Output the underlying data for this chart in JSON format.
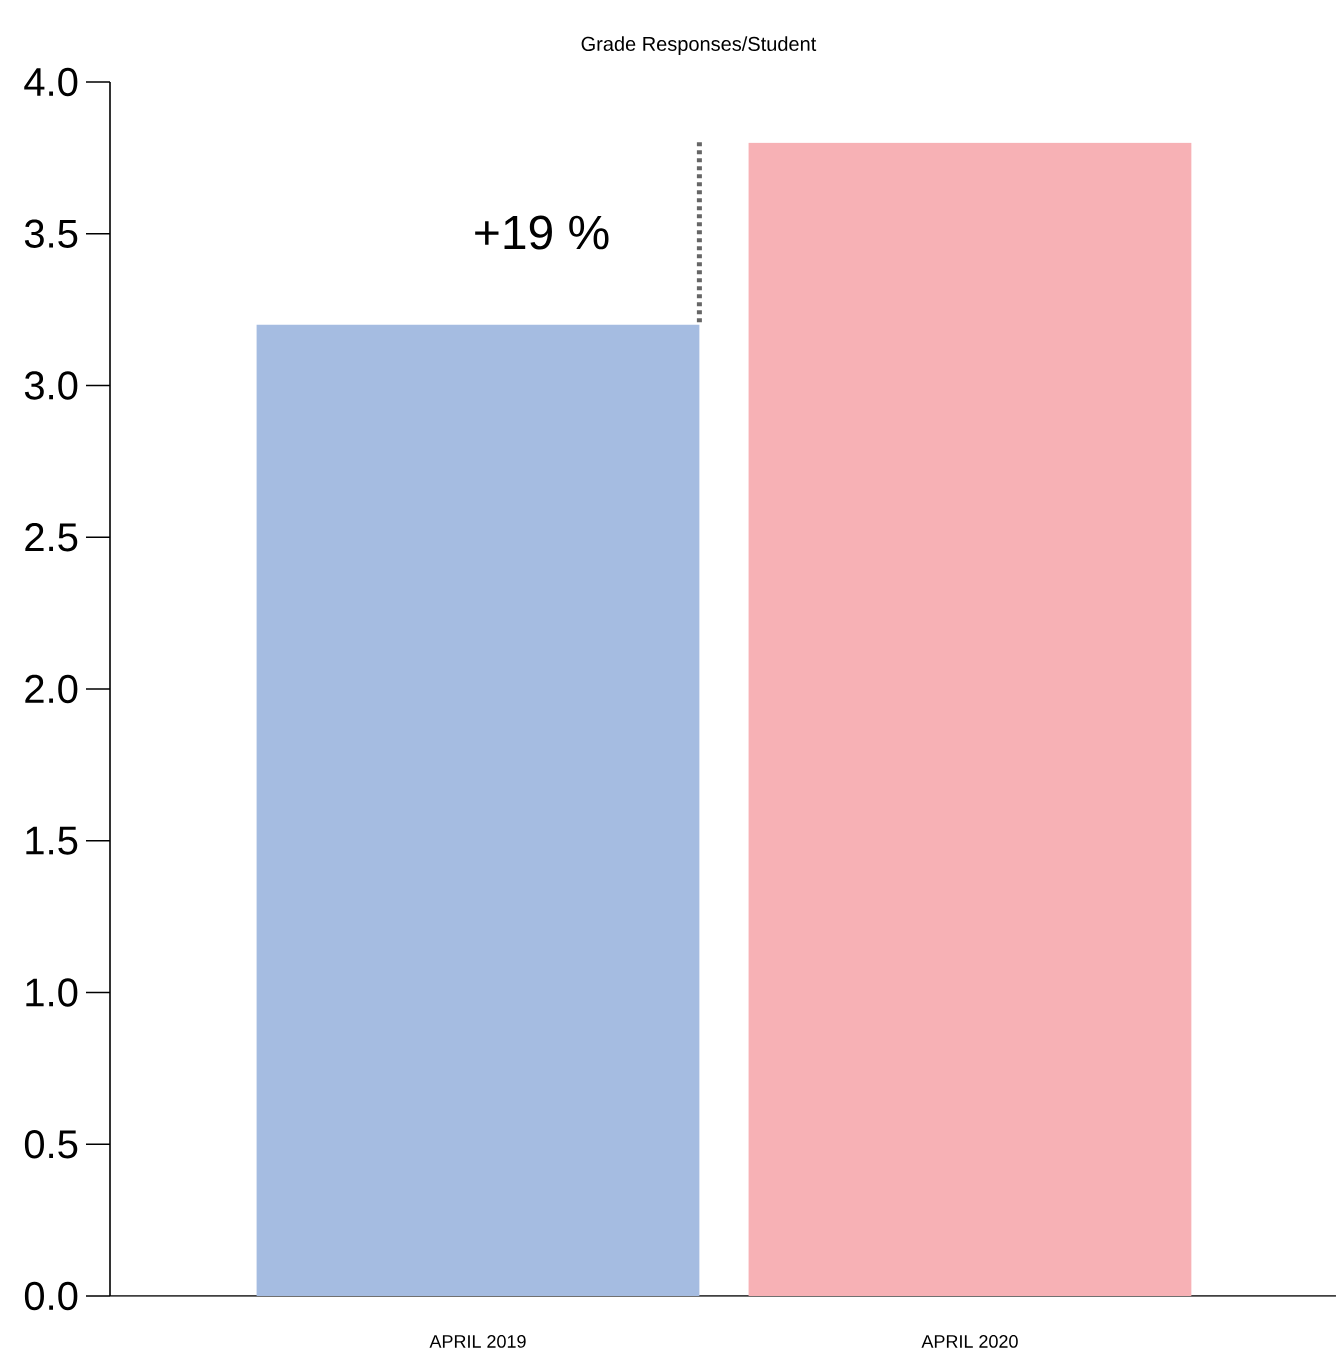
{
  "chart_data": {
    "type": "bar",
    "title": "Grade Responses/Student",
    "categories": [
      "APRIL 2019",
      "APRIL 2020"
    ],
    "values": [
      3.2,
      3.8
    ],
    "colors": [
      "#a5bce1",
      "#f7b1b5"
    ],
    "ylim": [
      0,
      4
    ],
    "yticks": [
      {
        "value": 0,
        "label": "0.0"
      },
      {
        "value": 0.5,
        "label": "0.5"
      },
      {
        "value": 1,
        "label": "1.0"
      },
      {
        "value": 1.5,
        "label": "1.5"
      },
      {
        "value": 2,
        "label": "2.0"
      },
      {
        "value": 2.5,
        "label": "2.5"
      },
      {
        "value": 3,
        "label": "3.0"
      },
      {
        "value": 3.5,
        "label": "3.5"
      },
      {
        "value": 4,
        "label": "4.0"
      }
    ],
    "annotations": [
      "+19 %"
    ],
    "grid": false
  }
}
